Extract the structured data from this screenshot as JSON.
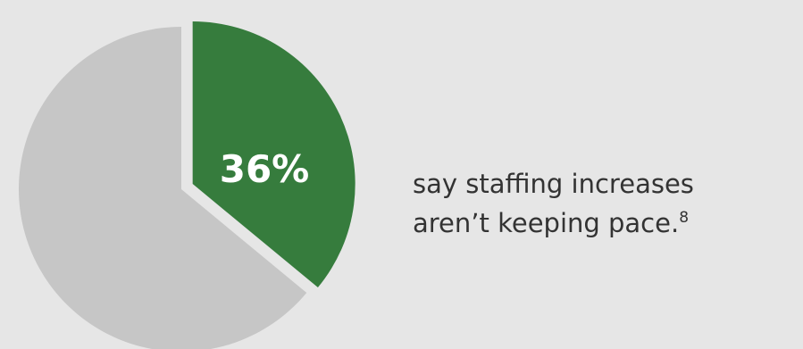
{
  "chart_data": {
    "type": "pie",
    "slices": [
      {
        "value": 36,
        "color": "#367c3d",
        "label": "36%"
      },
      {
        "value": 64,
        "color": "#c6c6c6"
      }
    ],
    "highlight_label": "36%"
  },
  "caption": {
    "line1": "say staffing increases",
    "line2": "aren’t keeping pace.",
    "footnote": "8"
  },
  "colors": {
    "background": "#e6e6e6",
    "highlight": "#367c3d",
    "remainder": "#c6c6c6",
    "text": "#333333"
  }
}
